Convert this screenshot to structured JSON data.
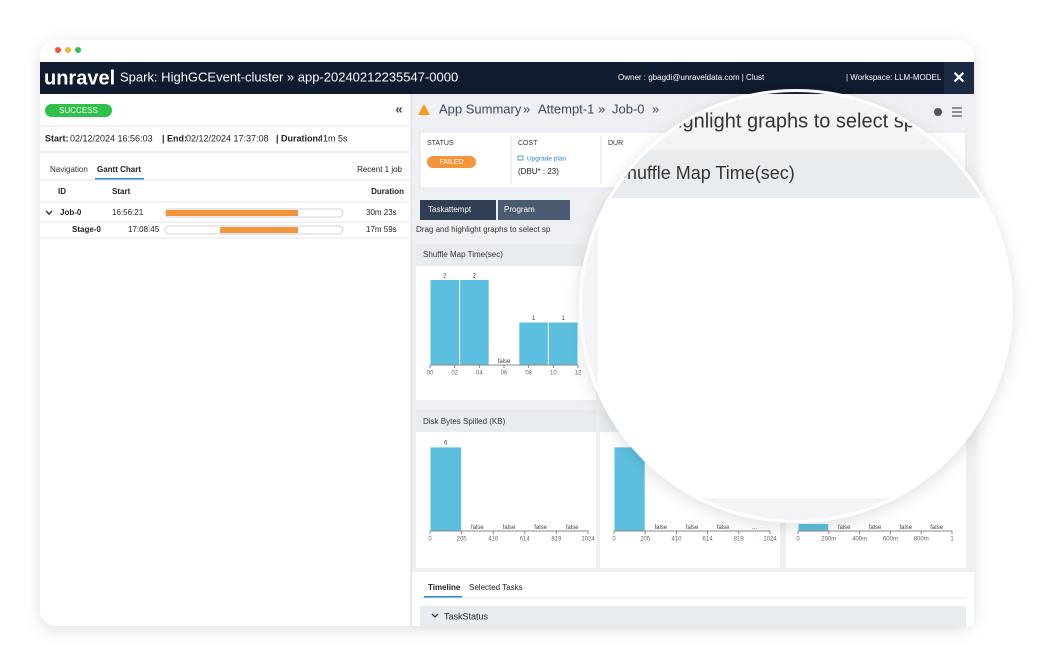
{
  "header": {
    "logo": "unravel",
    "title": "Spark: HighGCEvent-cluster » app-20240212235547-0000",
    "owner": "Owner : gbagdi@unraveldata.com | Clust",
    "workspace": "| Workspace: LLM-MODEL",
    "close": "✕"
  },
  "left_panel": {
    "status": "SUCCESS",
    "collapse": "«",
    "start_label": "Start:",
    "start": "02/12/2024 16:56:03",
    "end_label": "| End:",
    "end": "02/12/2024 17:37:08",
    "duration_label": "| Duration:",
    "duration": "41m 5s",
    "tabs": [
      "Navigation",
      "Gantt Chart"
    ],
    "recent": "Recent 1 job",
    "columns": [
      "ID",
      "Start",
      "Duration"
    ],
    "rows": [
      [
        "Job-0",
        "16:56:21",
        "30m 23s"
      ],
      [
        "Stage-0",
        "17:08:45",
        "17m 59s"
      ]
    ]
  },
  "right_panel": {
    "breadcrumb": [
      "App Summary",
      "»",
      "Attempt-1",
      "»",
      "Job-0",
      "»"
    ],
    "summary": {
      "status_label": "STATUS",
      "status": "FAILED",
      "cost_label": "COST",
      "upgrade": "Upgrade plan",
      "dbu": "(DBU* : 23)",
      "duration_label": "DUR"
    },
    "tabs": [
      "Taskattempt",
      "Program"
    ],
    "hint": "Drag and highlight graphs to select sp",
    "bottom_tabs": [
      "Timeline",
      "Selected Tasks"
    ],
    "section": "TaskStatus"
  },
  "magnifier": {
    "hint": "and highlight graphs to select sp"
  },
  "chart_data": [
    {
      "type": "histogram",
      "title": "Shuffle Map Time(sec)",
      "bins": [
        0,
        2.4,
        4.8,
        7.2,
        9.6,
        12
      ],
      "values": [
        2,
        2,
        null,
        1,
        1
      ],
      "value_labels": [
        "2",
        "2",
        "false",
        "1",
        "1"
      ],
      "color": "#5dbfe0",
      "xlim": [
        0,
        12
      ],
      "xticks": [
        {
          "value": 0,
          "label": "00"
        },
        {
          "value": 2,
          "label": "02"
        },
        {
          "value": 4,
          "label": "04"
        },
        {
          "value": 6,
          "label": "06"
        },
        {
          "value": 8,
          "label": "08"
        },
        10,
        12
      ],
      "ylim": [
        0,
        2.2
      ]
    },
    {
      "type": "histogram",
      "title": "Disk Bytes Spilled (KB)",
      "bins": [
        0,
        204.8,
        409.6,
        614.4,
        819.2,
        1024
      ],
      "values": [
        6,
        null,
        null,
        null,
        null
      ],
      "value_labels": [
        "6",
        "false",
        "false",
        "false",
        "false"
      ],
      "color": "#5dbfe0",
      "xlim": [
        0,
        1024
      ],
      "xticks": [
        0,
        205,
        410,
        614,
        819,
        1024
      ],
      "ylim": [
        0,
        6.6
      ]
    },
    {
      "type": "histogram",
      "bins": [
        0,
        204.8,
        409.6,
        614.4,
        819.2,
        1024
      ],
      "values": [
        6,
        null,
        null,
        null,
        null
      ],
      "value_labels": [
        null,
        "false",
        "false",
        "false",
        "..."
      ],
      "color": "#5dbfe0",
      "xlim": [
        0,
        1024
      ],
      "xticks": [
        0,
        205,
        410,
        614,
        819,
        1024
      ],
      "ylim": [
        0,
        6.6
      ]
    },
    {
      "type": "histogram",
      "bins": [
        0,
        0.2,
        0.4,
        0.6,
        0.8,
        1
      ],
      "values": [
        0.5,
        null,
        null,
        null,
        null
      ],
      "value_labels": [
        null,
        "false",
        "false",
        "false",
        "false"
      ],
      "color": "#5dbfe0",
      "xlim": [
        0,
        1
      ],
      "xticks": [
        0,
        {
          "value": 0.2,
          "label": "200m"
        },
        {
          "value": 0.4,
          "label": "400m"
        },
        {
          "value": 0.6,
          "label": "600m"
        },
        {
          "value": 0.8,
          "label": "800m"
        },
        1
      ],
      "ylim": [
        0,
        6.6
      ]
    }
  ]
}
